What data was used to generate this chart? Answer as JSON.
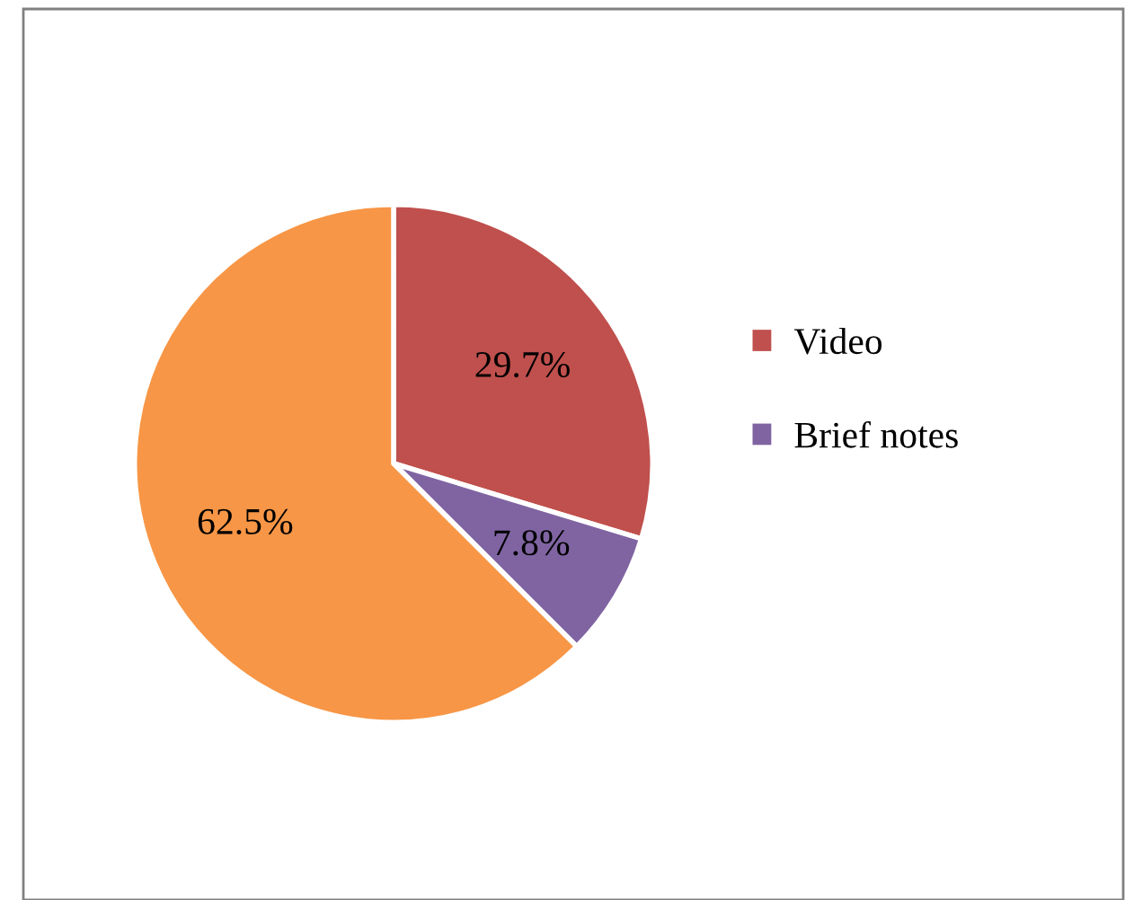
{
  "chart_data": {
    "type": "pie",
    "categories": [
      "Video",
      "Brief notes",
      null
    ],
    "values": [
      29.7,
      7.8,
      62.5
    ],
    "colors": [
      "#c0504d",
      "#8064a2",
      "#f79646"
    ],
    "value_labels": [
      "29.7%",
      "7.8%",
      "62.5%"
    ],
    "legend": "right"
  }
}
